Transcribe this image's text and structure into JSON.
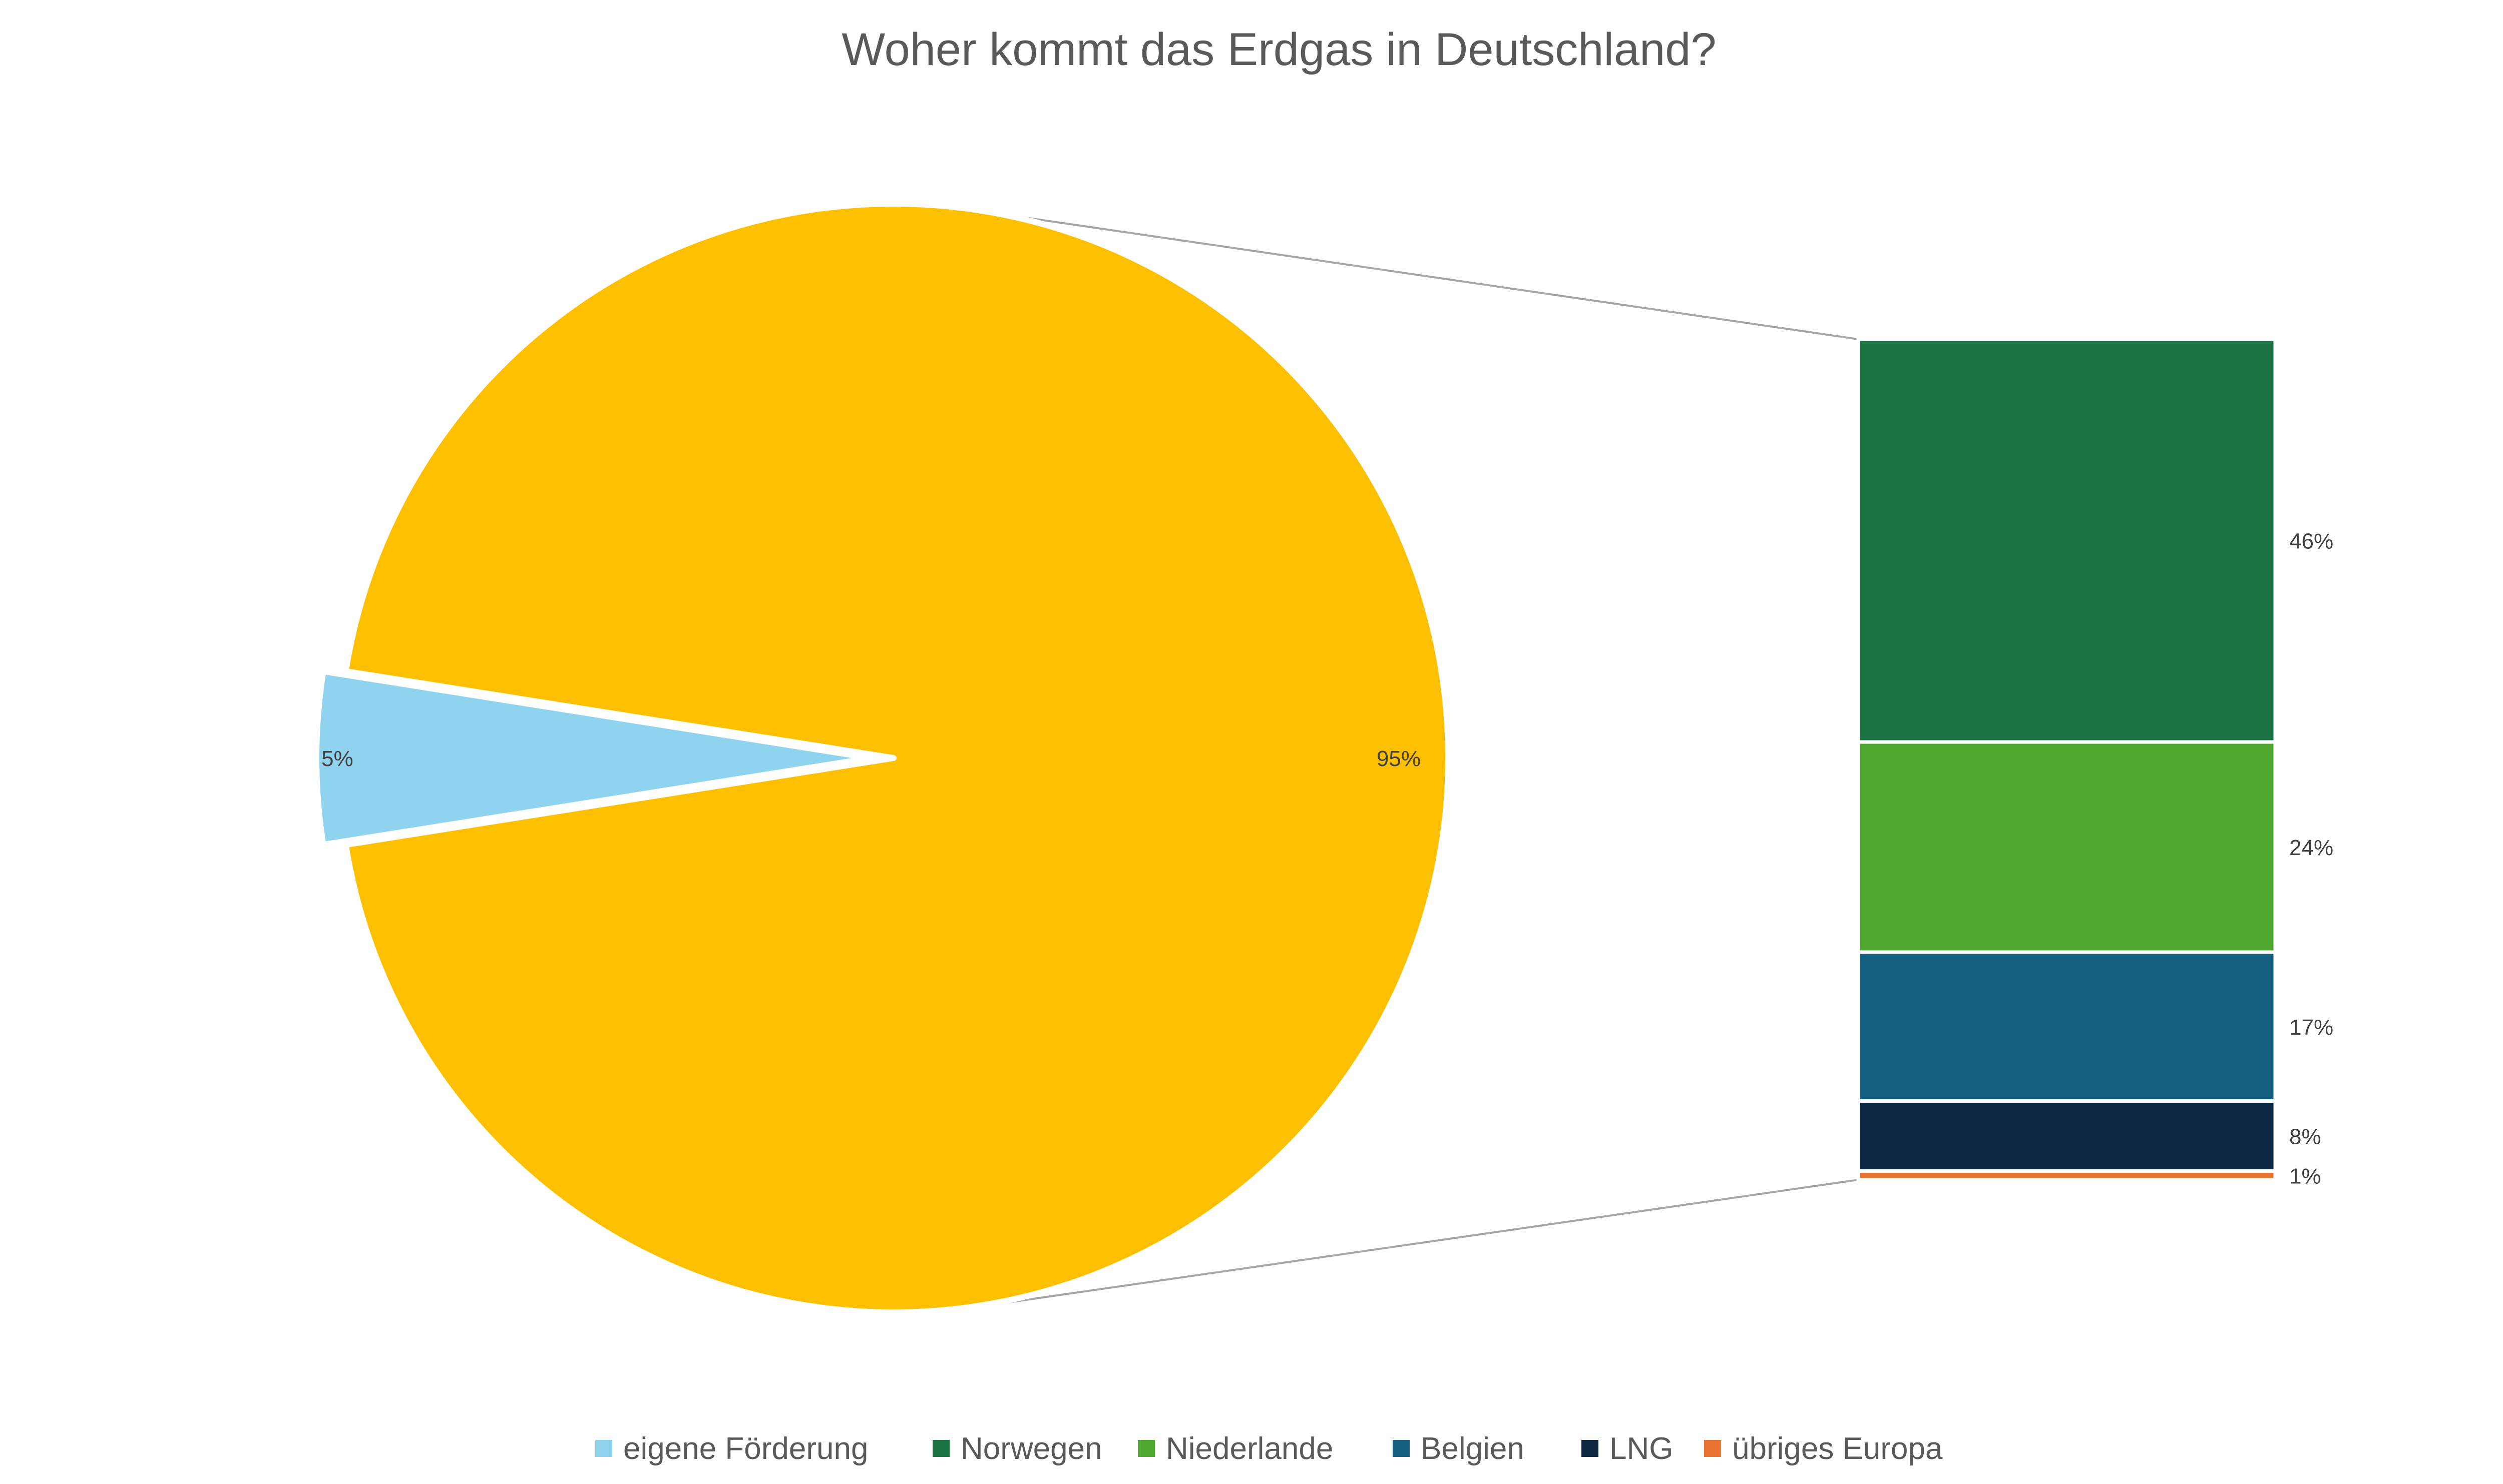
{
  "chart_data": {
    "type": "pie",
    "subtype": "pie-of-bar",
    "title": "Woher kommt das Erdgas in Deutschland?",
    "pie": {
      "slices": [
        {
          "name": "eigene Förderung",
          "value": 5,
          "label": "5%",
          "color": "#8FD3EE",
          "exploded": true
        },
        {
          "name": "",
          "value": 95,
          "label": "95%",
          "color": "#FDC000",
          "exploded": false
        }
      ]
    },
    "bar": {
      "segments": [
        {
          "name": "Norwegen",
          "value": 46,
          "label": "46%",
          "color": "#1C7343"
        },
        {
          "name": "Niederlande",
          "value": 24,
          "label": "24%",
          "color": "#4EA72E"
        },
        {
          "name": "Belgien",
          "value": 17,
          "label": "17%",
          "color": "#155F82"
        },
        {
          "name": "LNG",
          "value": 8,
          "label": "8%",
          "color": "#0E2841"
        },
        {
          "name": "übriges Europa",
          "value": 1,
          "label": "1%",
          "color": "#E97132"
        }
      ]
    },
    "legend": {
      "position": "bottom",
      "entries": [
        {
          "name": "eigene Förderung",
          "color": "#8FD3EE"
        },
        {
          "name": "Norwegen",
          "color": "#1C7343"
        },
        {
          "name": "Niederlande",
          "color": "#4EA72E"
        },
        {
          "name": "Belgien",
          "color": "#155F82"
        },
        {
          "name": "LNG",
          "color": "#0E2841"
        },
        {
          "name": "übriges Europa",
          "color": "#E97132"
        }
      ]
    },
    "connector_color": "#A6A6A6"
  }
}
